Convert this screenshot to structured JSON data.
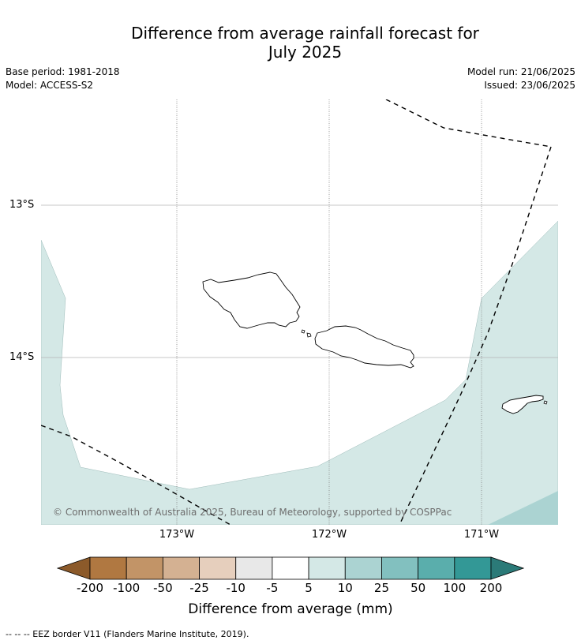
{
  "title_line1": "Difference from average rainfall forecast for",
  "title_line2": "July 2025",
  "base_period": "Base period: 1981-2018",
  "model": "Model: ACCESS-S2",
  "model_run": "Model run: 21/06/2025",
  "issued": "Issued: 23/06/2025",
  "lat_labels": [
    "13°S",
    "14°S"
  ],
  "lon_labels": [
    "173°W",
    "172°W",
    "171°W"
  ],
  "copyright": "© Commonwealth of Australia 2025, Bureau of Meteorology, supported by COSPPac",
  "colorbar": {
    "ticks": [
      "-200",
      "-100",
      "-50",
      "-25",
      "-10",
      "-5",
      "5",
      "10",
      "25",
      "50",
      "100",
      "200"
    ],
    "colors": [
      "#8c5a2a",
      "#b07841",
      "#c29467",
      "#d4b192",
      "#e6cfbd",
      "#e8e8e8",
      "#ffffff",
      "#d4e8e6",
      "#abd3d2",
      "#82c0bf",
      "#5aaeac",
      "#339896",
      "#2b7a78"
    ],
    "label": "Difference from average (mm)"
  },
  "legend_footnote": "--  --  -- EEZ border V11 (Flanders Marine Institute, 2019).",
  "map": {
    "land_color": "#ffffff",
    "anomaly_color_light": "#d4e8e6",
    "anomaly_color_mid": "#abd3d2",
    "eez_line": "dashed black"
  }
}
